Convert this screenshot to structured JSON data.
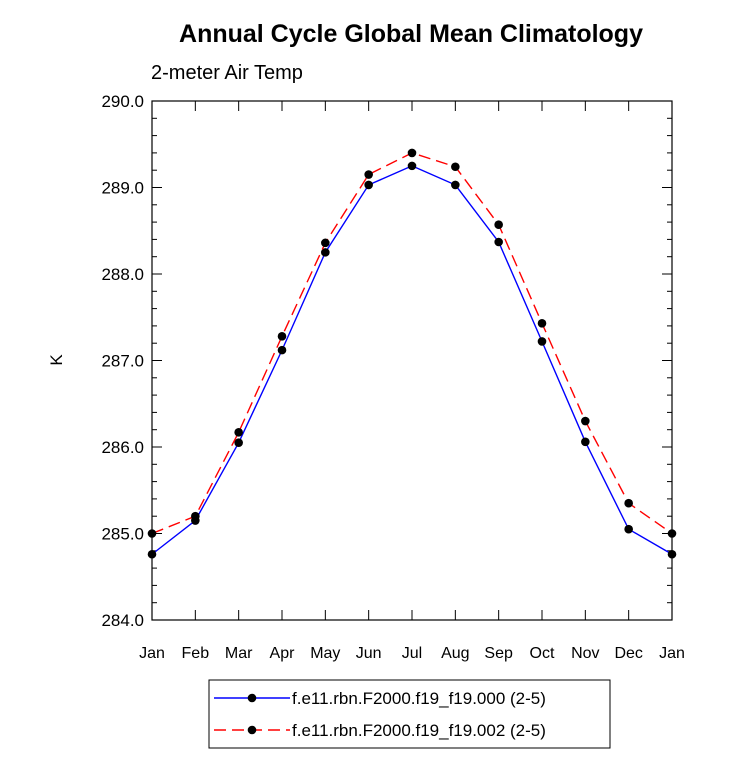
{
  "chart_data": {
    "type": "line",
    "title": "Annual Cycle Global Mean Climatology",
    "subtitle": "2-meter Air Temp",
    "xlabel": "",
    "ylabel": "K",
    "categories": [
      "Jan",
      "Feb",
      "Mar",
      "Apr",
      "May",
      "Jun",
      "Jul",
      "Aug",
      "Sep",
      "Oct",
      "Nov",
      "Dec",
      "Jan"
    ],
    "ylim": [
      284.0,
      290.0
    ],
    "yticks": [
      "284.0",
      "285.0",
      "286.0",
      "287.0",
      "288.0",
      "289.0",
      "290.0"
    ],
    "grid": false,
    "legend_position": "bottom",
    "series": [
      {
        "name": "f.e11.rbn.F2000.f19_f19.000 (2-5)",
        "color": "#0000ff",
        "dash": "solid",
        "marker": "filled-circle",
        "values": [
          284.76,
          285.15,
          286.05,
          287.12,
          288.25,
          289.03,
          289.25,
          289.03,
          288.37,
          287.22,
          286.06,
          285.05,
          284.76
        ]
      },
      {
        "name": "f.e11.rbn.F2000.f19_f19.002 (2-5)",
        "color": "#ff0000",
        "dash": "dashed",
        "marker": "filled-circle",
        "values": [
          285.0,
          285.2,
          286.17,
          287.28,
          288.36,
          289.15,
          289.4,
          289.24,
          288.57,
          287.43,
          286.3,
          285.35,
          285.0
        ]
      }
    ]
  }
}
